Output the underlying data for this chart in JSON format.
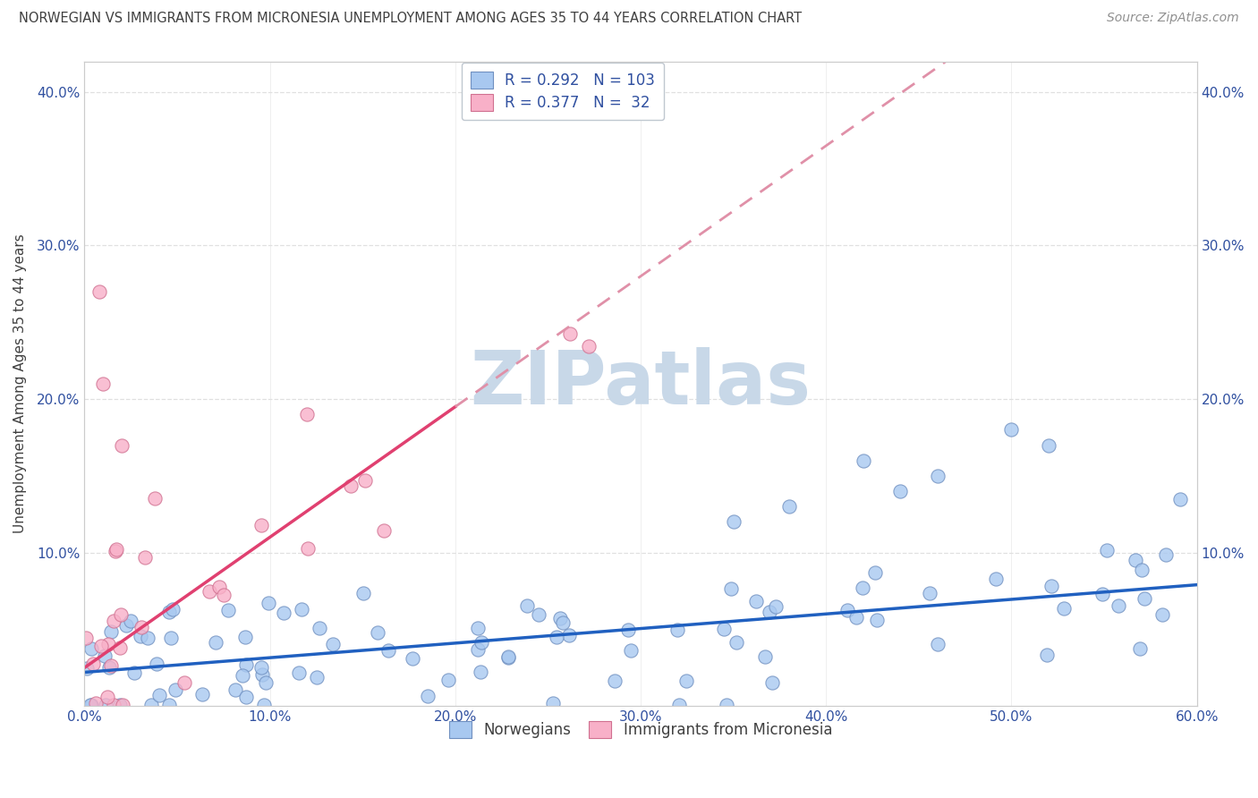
{
  "title": "NORWEGIAN VS IMMIGRANTS FROM MICRONESIA UNEMPLOYMENT AMONG AGES 35 TO 44 YEARS CORRELATION CHART",
  "source": "Source: ZipAtlas.com",
  "ylabel": "Unemployment Among Ages 35 to 44 years",
  "xlim": [
    0.0,
    0.6
  ],
  "ylim": [
    0.0,
    0.42
  ],
  "xticks": [
    0.0,
    0.1,
    0.2,
    0.3,
    0.4,
    0.5,
    0.6
  ],
  "xticklabels": [
    "0.0%",
    "10.0%",
    "20.0%",
    "30.0%",
    "40.0%",
    "50.0%",
    "60.0%"
  ],
  "yticks": [
    0.0,
    0.1,
    0.2,
    0.3,
    0.4
  ],
  "yticklabels": [
    "",
    "10.0%",
    "20.0%",
    "30.0%",
    "40.0%"
  ],
  "legend_labels": [
    "Norwegians",
    "Immigrants from Micronesia"
  ],
  "r_norwegian": 0.292,
  "n_norwegian": 103,
  "r_micronesia": 0.377,
  "n_micronesia": 32,
  "norwegian_color": "#a8c8f0",
  "norwegian_edge_color": "#7090c0",
  "micronesia_color": "#f8b0c8",
  "micronesia_edge_color": "#d07090",
  "norwegian_line_color": "#2060c0",
  "micronesia_line_color": "#e04070",
  "micronesia_dash_color": "#e090a8",
  "title_color": "#404040",
  "source_color": "#909090",
  "label_color": "#404040",
  "tick_color": "#3050a0",
  "watermark_color": "#c8d8e8",
  "background_color": "#ffffff",
  "grid_color": "#e0e0e0"
}
